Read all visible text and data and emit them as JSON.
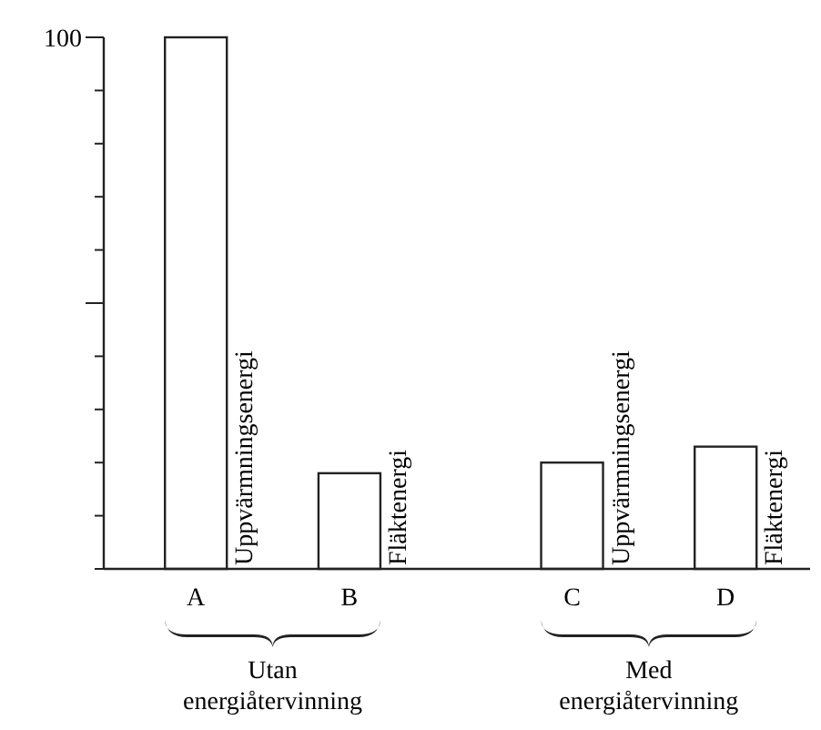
{
  "chart_data": {
    "type": "bar",
    "categories": [
      "A",
      "B",
      "C",
      "D"
    ],
    "values": [
      100,
      18,
      20,
      23
    ],
    "color": "#ffffff",
    "ylim": [
      0,
      100
    ],
    "yticks": [
      {
        "value": 0,
        "label": null
      },
      {
        "value": 10,
        "label": null
      },
      {
        "value": 20,
        "label": null
      },
      {
        "value": 30,
        "label": null
      },
      {
        "value": 40,
        "label": null
      },
      {
        "value": 50,
        "label": null
      },
      {
        "value": 60,
        "label": null
      },
      {
        "value": 70,
        "label": null
      },
      {
        "value": 80,
        "label": null
      },
      {
        "value": 90,
        "label": null
      },
      100
    ],
    "annotations": [
      "Uppvärmningsenergi",
      "Fläktenergi",
      "Uppvärmningsenergi",
      "Fläktenergi",
      "Utan energiåtervinning",
      "Med energiåtervinning"
    ],
    "grid": false
  }
}
